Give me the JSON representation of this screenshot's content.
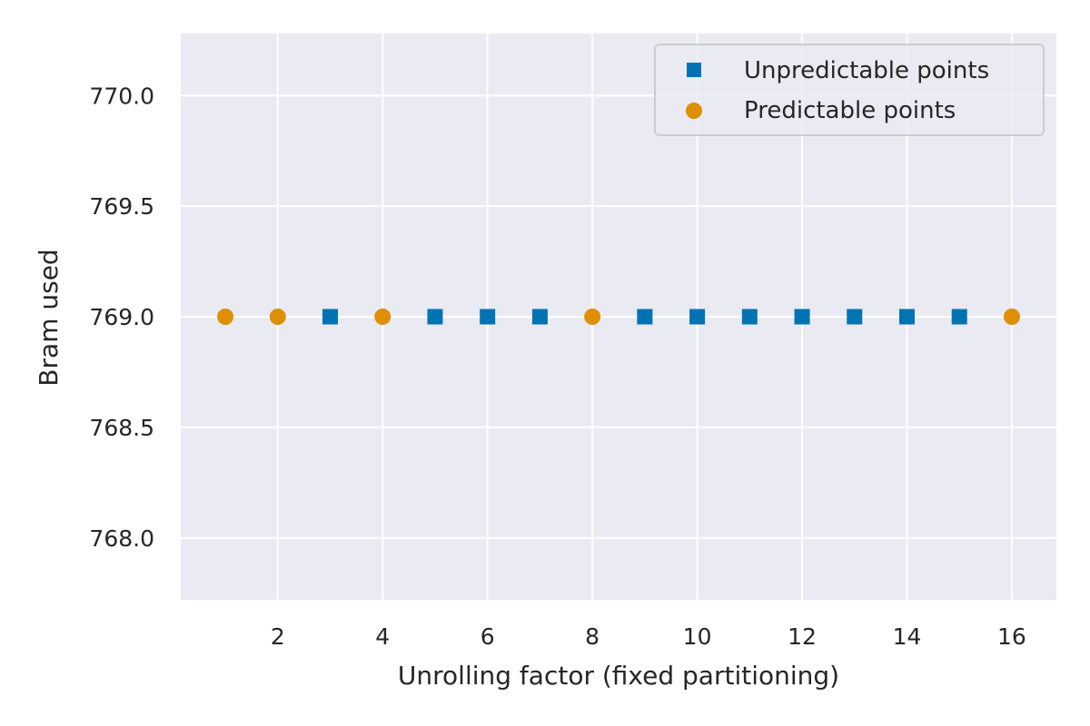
{
  "chart_data": {
    "type": "scatter",
    "title": "",
    "xlabel": "Unrolling factor (fixed partitioning)",
    "ylabel": "Bram used",
    "xlim": [
      0.15,
      16.85
    ],
    "ylim": [
      767.72,
      770.28
    ],
    "xticks": [
      2,
      4,
      6,
      8,
      10,
      12,
      14,
      16
    ],
    "xtick_labels": [
      "2",
      "4",
      "6",
      "8",
      "10",
      "12",
      "14",
      "16"
    ],
    "yticks": [
      768.0,
      768.5,
      769.0,
      769.5,
      770.0
    ],
    "ytick_labels": [
      "768.0",
      "768.5",
      "769.0",
      "769.5",
      "770.0"
    ],
    "grid": true,
    "legend_position": "top-right",
    "series": [
      {
        "name": "Unpredictable points",
        "marker": "square",
        "color": "#0173b2",
        "x": [
          3,
          5,
          6,
          7,
          9,
          10,
          11,
          12,
          13,
          14,
          15
        ],
        "y": [
          769,
          769,
          769,
          769,
          769,
          769,
          769,
          769,
          769,
          769,
          769
        ]
      },
      {
        "name": "Predictable points",
        "marker": "circle",
        "color": "#de8f05",
        "x": [
          1,
          2,
          4,
          8,
          16
        ],
        "y": [
          769,
          769,
          769,
          769,
          769
        ]
      }
    ]
  }
}
